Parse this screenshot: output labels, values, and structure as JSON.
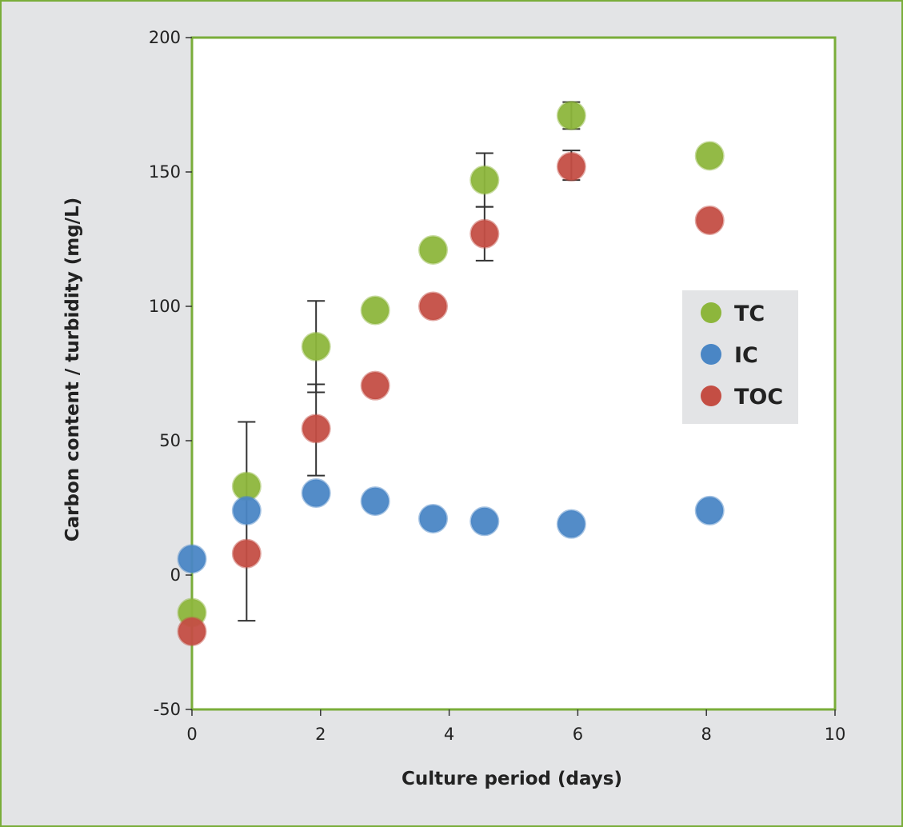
{
  "chart_data": {
    "type": "scatter",
    "title": "",
    "xlabel": "Culture period (days)",
    "ylabel": "Carbon content / turbidity (mg/L)",
    "xlim": [
      0,
      10
    ],
    "ylim": [
      -50,
      200
    ],
    "xticks": [
      0,
      2,
      4,
      6,
      8,
      10
    ],
    "yticks": [
      -50,
      0,
      50,
      100,
      150,
      200
    ],
    "grid": false,
    "legend_position": "right",
    "series": [
      {
        "name": "TC",
        "color": "#8db63c",
        "points": [
          {
            "x": 0,
            "y": -14
          },
          {
            "x": 0.85,
            "y": 33
          },
          {
            "x": 1.93,
            "y": 85,
            "err_low": 68,
            "err_high": 102
          },
          {
            "x": 2.85,
            "y": 98.5
          },
          {
            "x": 3.75,
            "y": 121
          },
          {
            "x": 4.55,
            "y": 147,
            "err_low": 137,
            "err_high": 157
          },
          {
            "x": 5.9,
            "y": 171,
            "err_low": 166,
            "err_high": 176
          },
          {
            "x": 8.05,
            "y": 156
          }
        ]
      },
      {
        "name": "IC",
        "color": "#4a86c5",
        "points": [
          {
            "x": 0,
            "y": 6
          },
          {
            "x": 0.85,
            "y": 24
          },
          {
            "x": 1.93,
            "y": 30.5
          },
          {
            "x": 2.85,
            "y": 27.5
          },
          {
            "x": 3.75,
            "y": 21
          },
          {
            "x": 4.55,
            "y": 20
          },
          {
            "x": 5.9,
            "y": 19
          },
          {
            "x": 8.05,
            "y": 24
          }
        ]
      },
      {
        "name": "TOC",
        "color": "#c44e44",
        "points": [
          {
            "x": 0,
            "y": -21
          },
          {
            "x": 0.85,
            "y": 8,
            "err_low": -17,
            "err_high": 57
          },
          {
            "x": 1.93,
            "y": 54.5,
            "err_low": 37,
            "err_high": 71
          },
          {
            "x": 2.85,
            "y": 70.5
          },
          {
            "x": 3.75,
            "y": 100
          },
          {
            "x": 4.55,
            "y": 127,
            "err_low": 117,
            "err_high": 137
          },
          {
            "x": 5.9,
            "y": 152,
            "err_low": 147,
            "err_high": 158
          },
          {
            "x": 8.05,
            "y": 132
          }
        ]
      }
    ]
  }
}
